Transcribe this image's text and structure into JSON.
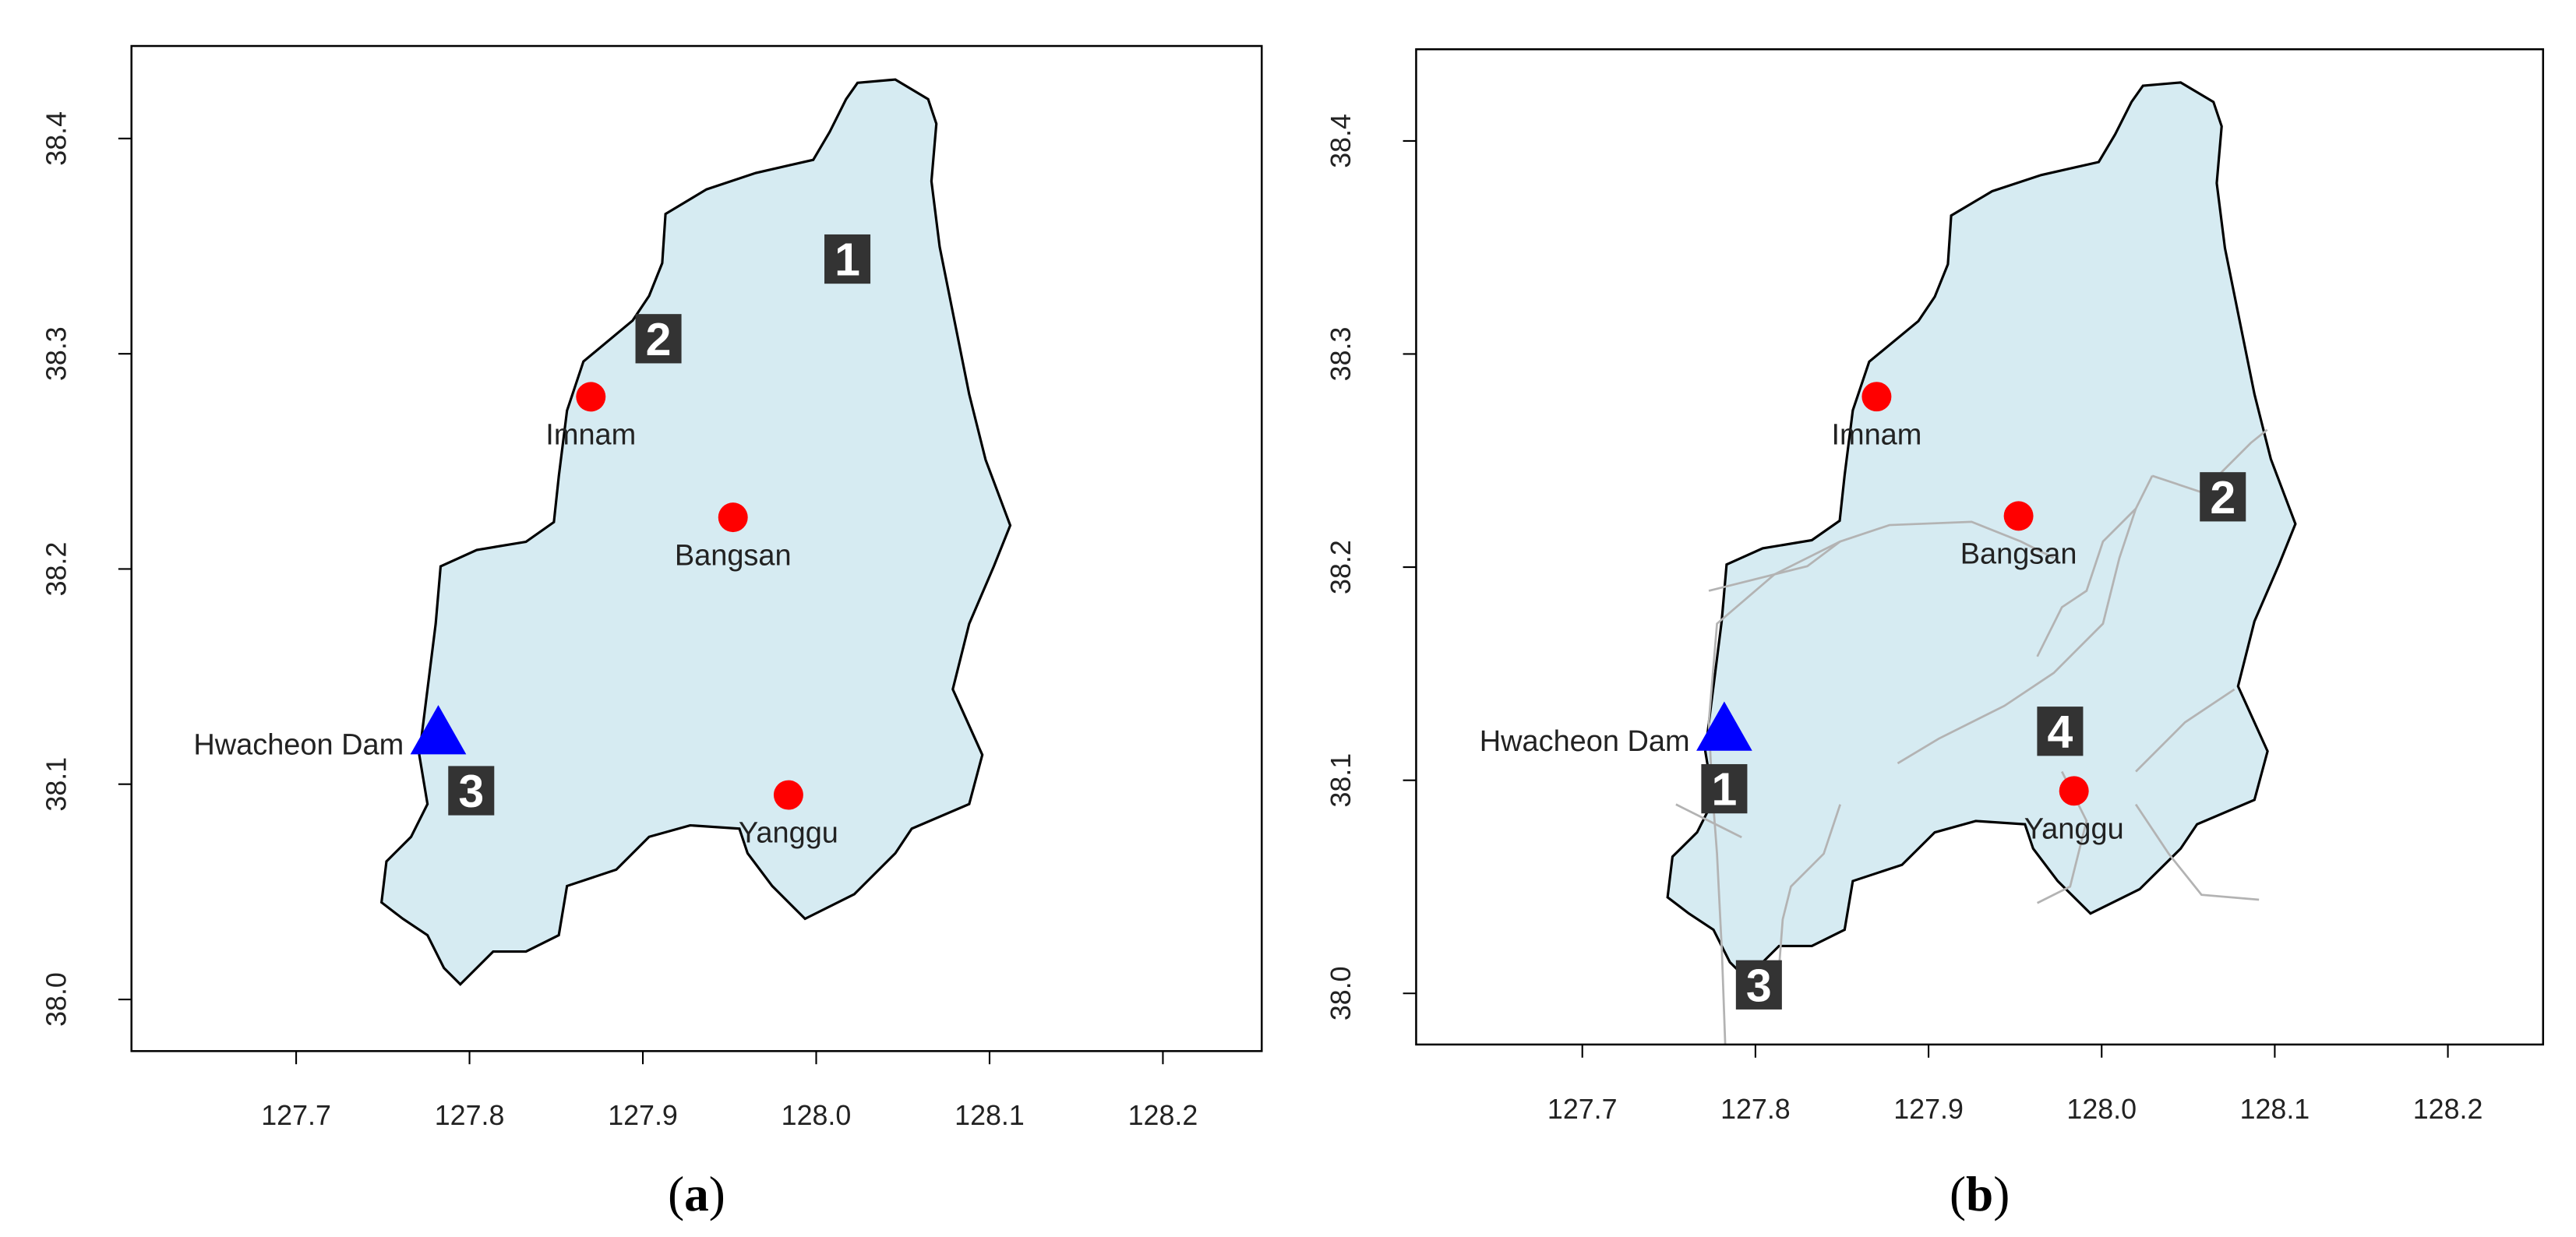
{
  "panels": [
    {
      "xlim": [
        127.605,
        128.257
      ],
      "ylim": [
        37.976,
        38.443
      ],
      "xticks": [
        127.7,
        127.8,
        127.9,
        {
          "value": 128.0,
          "label": "128.0"
        },
        128.1,
        128.2
      ],
      "yticks": [
        {
          "value": 38.0,
          "label": "38.0"
        },
        38.1,
        38.2,
        38.3,
        38.4
      ],
      "stations": [
        {
          "name": "Imnam",
          "lon": 127.87,
          "lat": 38.28,
          "color": "#ff0000"
        },
        {
          "name": "Bangsan",
          "lon": 127.952,
          "lat": 38.224,
          "color": "#ff0000"
        },
        {
          "name": "Yanggu",
          "lon": 127.984,
          "lat": 38.095,
          "color": "#ff0000"
        }
      ],
      "dam": {
        "name": "Hwacheon Dam",
        "lon": 127.782,
        "lat": 38.12,
        "color": "#0000ff"
      },
      "zones": [
        {
          "label": "1",
          "lon": 128.018,
          "lat": 38.344
        },
        {
          "label": "2",
          "lon": 127.909,
          "lat": 38.307
        },
        {
          "label": "3",
          "lon": 127.801,
          "lat": 38.097
        }
      ],
      "streams": false,
      "caption": {
        "open": "(",
        "letter": "a",
        "close": ")"
      }
    },
    {
      "xlim": [
        127.604,
        128.255
      ],
      "ylim": [
        37.976,
        38.443
      ],
      "xticks": [
        127.7,
        127.8,
        127.9,
        {
          "value": 128.0,
          "label": "128.0"
        },
        128.1,
        128.2
      ],
      "yticks": [
        {
          "value": 38.0,
          "label": "38.0"
        },
        38.1,
        38.2,
        38.3,
        38.4
      ],
      "stations": [
        {
          "name": "Imnam",
          "lon": 127.87,
          "lat": 38.28,
          "color": "#ff0000"
        },
        {
          "name": "Bangsan",
          "lon": 127.952,
          "lat": 38.224,
          "color": "#ff0000"
        },
        {
          "name": "Yanggu",
          "lon": 127.984,
          "lat": 38.095,
          "color": "#ff0000"
        }
      ],
      "dam": {
        "name": "Hwacheon Dam",
        "lon": 127.782,
        "lat": 38.12,
        "color": "#0000ff"
      },
      "zones": [
        {
          "label": "1",
          "lon": 127.782,
          "lat": 38.096
        },
        {
          "label": "2",
          "lon": 128.07,
          "lat": 38.233
        },
        {
          "label": "3",
          "lon": 127.802,
          "lat": 38.004
        },
        {
          "label": "4",
          "lon": 127.976,
          "lat": 38.123
        }
      ],
      "streams": true,
      "caption": {
        "open": "(",
        "letter": "b",
        "close": ")"
      }
    }
  ]
}
